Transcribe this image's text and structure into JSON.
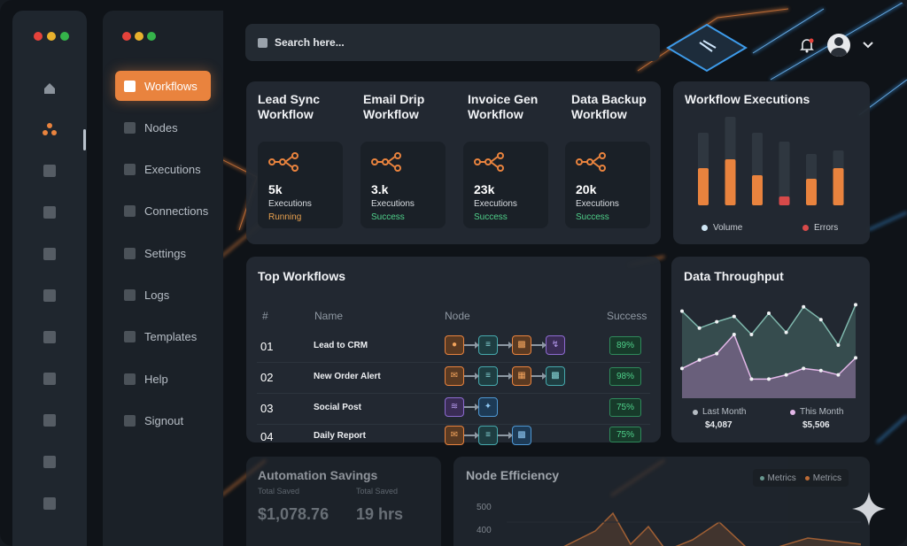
{
  "search": {
    "placeholder": "Search here..."
  },
  "sidebar": {
    "items": [
      {
        "label": "Workflows",
        "active": true
      },
      {
        "label": "Nodes"
      },
      {
        "label": "Executions"
      },
      {
        "label": "Connections"
      },
      {
        "label": "Settings"
      },
      {
        "label": "Logs"
      },
      {
        "label": "Templates"
      },
      {
        "label": "Help"
      },
      {
        "label": "Signout"
      }
    ]
  },
  "workflows": [
    {
      "name": "Lead Sync Workflow",
      "value": "5k",
      "label": "Executions",
      "status": "Running",
      "status_color": "#e8a04e"
    },
    {
      "name": "Email Drip Workflow",
      "value": "3.k",
      "label": "Executions",
      "status": "Success",
      "status_color": "#4fd08a"
    },
    {
      "name": "Invoice Gen Workflow",
      "value": "23k",
      "label": "Executions",
      "status": "Success",
      "status_color": "#4fd08a"
    },
    {
      "name": "Data Backup Workflow",
      "value": "20k",
      "label": "Executions",
      "status": "Success",
      "status_color": "#4fd08a"
    }
  ],
  "executions": {
    "title": "Workflow Executions",
    "legend": [
      "Volume",
      "Errors"
    ],
    "chart_data": {
      "type": "bar",
      "series": [
        {
          "name": "Volume",
          "values": [
            0.42,
            0.52,
            0.34,
            0.1,
            0.3,
            0.42
          ],
          "color": "#e9833e"
        },
        {
          "name": "Errors",
          "values": [
            0.0,
            0.0,
            0.0,
            0.1,
            0.0,
            0.0
          ],
          "color": "#d84a4a"
        }
      ],
      "background": [
        0.82,
        1.0,
        0.82,
        0.72,
        0.58,
        0.62
      ]
    }
  },
  "top_workflows": {
    "title": "Top Workflows",
    "headers": {
      "num": "#",
      "name": "Name",
      "node": "Node",
      "success": "Success"
    },
    "rows": [
      {
        "num": "01",
        "name": "Lead to CRM",
        "nodes": [
          "o:user",
          "t:list",
          "o:doc",
          "p:flash"
        ],
        "success": "89%"
      },
      {
        "num": "02",
        "name": "New Order Alert",
        "nodes": [
          "o:mail",
          "t:list",
          "o:store",
          "t:doc"
        ],
        "success": "98%"
      },
      {
        "num": "03",
        "name": "Social Post",
        "nodes": [
          "p:rss",
          "b:bird"
        ],
        "success": "75%"
      },
      {
        "num": "04",
        "name": "Daily Report",
        "nodes": [
          "o:mail",
          "t:list",
          "b:doc"
        ],
        "success": "75%"
      }
    ]
  },
  "throughput": {
    "title": "Data Throughput",
    "last_label": "Last Month",
    "last_value": "$4,087",
    "this_label": "This Month",
    "this_value": "$5,506",
    "chart_data": {
      "type": "area",
      "series": [
        {
          "name": "Last Month",
          "values": [
            0.82,
            0.66,
            0.72,
            0.77,
            0.6,
            0.8,
            0.62,
            0.86,
            0.74,
            0.5,
            0.88
          ],
          "color": "#7fb8ad"
        },
        {
          "name": "This Month",
          "values": [
            0.28,
            0.36,
            0.42,
            0.6,
            0.18,
            0.18,
            0.22,
            0.28,
            0.26,
            0.22,
            0.38
          ],
          "color": "#e3b7e8"
        }
      ]
    }
  },
  "savings": {
    "title": "Automation Savings",
    "label1": "Total Saved",
    "value1": "$1,078.76",
    "label2": "Total Saved",
    "value2": "19 hrs"
  },
  "efficiency": {
    "title": "Node Efficiency",
    "legend": [
      "Metrics",
      "Metrics"
    ],
    "ticks": [
      "500",
      "400"
    ]
  }
}
